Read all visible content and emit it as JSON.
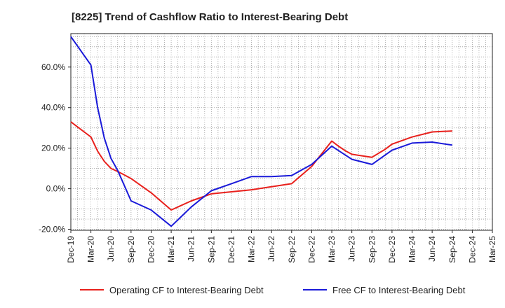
{
  "chart_data": {
    "type": "line",
    "title": "[8225]  Trend of Cashflow Ratio to Interest-Bearing Debt",
    "xlabel": "",
    "ylabel": "",
    "x_ticks": [
      "Dec-19",
      "Mar-20",
      "Jun-20",
      "Sep-20",
      "Dec-20",
      "Mar-21",
      "Jun-21",
      "Sep-21",
      "Dec-21",
      "Mar-22",
      "Jun-22",
      "Sep-22",
      "Dec-22",
      "Mar-23",
      "Jun-23",
      "Sep-23",
      "Dec-23",
      "Mar-24",
      "Jun-24",
      "Sep-24",
      "Dec-24",
      "Mar-25"
    ],
    "y_ticks": [
      -20,
      0,
      20,
      40,
      60
    ],
    "y_tick_labels": [
      "-20.0%",
      "0.0%",
      "20.0%",
      "40.0%",
      "60.0%"
    ],
    "ylim": [
      -20.5,
      76.5
    ],
    "grid": true,
    "legend_position": "bottom",
    "series": [
      {
        "name": "Operating CF to Interest-Bearing Debt",
        "color": "#e8201c",
        "points": [
          [
            "Dec-19",
            33.0
          ],
          [
            "Jan-20",
            30.5
          ],
          [
            "Feb-20",
            28.0
          ],
          [
            "Mar-20",
            25.5
          ],
          [
            "Apr-20",
            18.5
          ],
          [
            "May-20",
            13.5
          ],
          [
            "Jun-20",
            10.0
          ],
          [
            "Jul-20",
            8.5
          ],
          [
            "Aug-20",
            6.8
          ],
          [
            "Sep-20",
            5.0
          ],
          [
            "Dec-20",
            -2.0
          ],
          [
            "Mar-21",
            -10.5
          ],
          [
            "Jun-21",
            -6.0
          ],
          [
            "Sep-21",
            -2.5
          ],
          [
            "Dec-21",
            -1.5
          ],
          [
            "Mar-22",
            -0.5
          ],
          [
            "Jun-22",
            1.0
          ],
          [
            "Sep-22",
            2.5
          ],
          [
            "Dec-22",
            11.0
          ],
          [
            "Mar-23",
            23.5
          ],
          [
            "Apr-23",
            21.0
          ],
          [
            "May-23",
            18.8
          ],
          [
            "Jun-23",
            17.0
          ],
          [
            "Sep-23",
            15.5
          ],
          [
            "Nov-23",
            19.5
          ],
          [
            "Dec-23",
            22.0
          ],
          [
            "Mar-24",
            25.5
          ],
          [
            "Jun-24",
            28.0
          ],
          [
            "Sep-24",
            28.5
          ]
        ]
      },
      {
        "name": "Free CF to Interest-Bearing Debt",
        "color": "#1a1ad9",
        "points": [
          [
            "Dec-19",
            75.0
          ],
          [
            "Mar-20",
            61.0
          ],
          [
            "Apr-20",
            40.0
          ],
          [
            "May-20",
            25.0
          ],
          [
            "Jun-20",
            15.0
          ],
          [
            "Jul-20",
            9.0
          ],
          [
            "Sep-20",
            -6.0
          ],
          [
            "Dec-20",
            -10.5
          ],
          [
            "Mar-21",
            -18.5
          ],
          [
            "Jun-21",
            -9.0
          ],
          [
            "Sep-21",
            -1.0
          ],
          [
            "Dec-21",
            2.5
          ],
          [
            "Mar-22",
            6.0
          ],
          [
            "Jun-22",
            6.0
          ],
          [
            "Sep-22",
            6.5
          ],
          [
            "Dec-22",
            12.0
          ],
          [
            "Mar-23",
            21.0
          ],
          [
            "Jun-23",
            14.5
          ],
          [
            "Sep-23",
            12.0
          ],
          [
            "Dec-23",
            19.0
          ],
          [
            "Mar-24",
            22.5
          ],
          [
            "Jun-24",
            23.0
          ],
          [
            "Sep-24",
            21.5
          ]
        ]
      }
    ]
  }
}
